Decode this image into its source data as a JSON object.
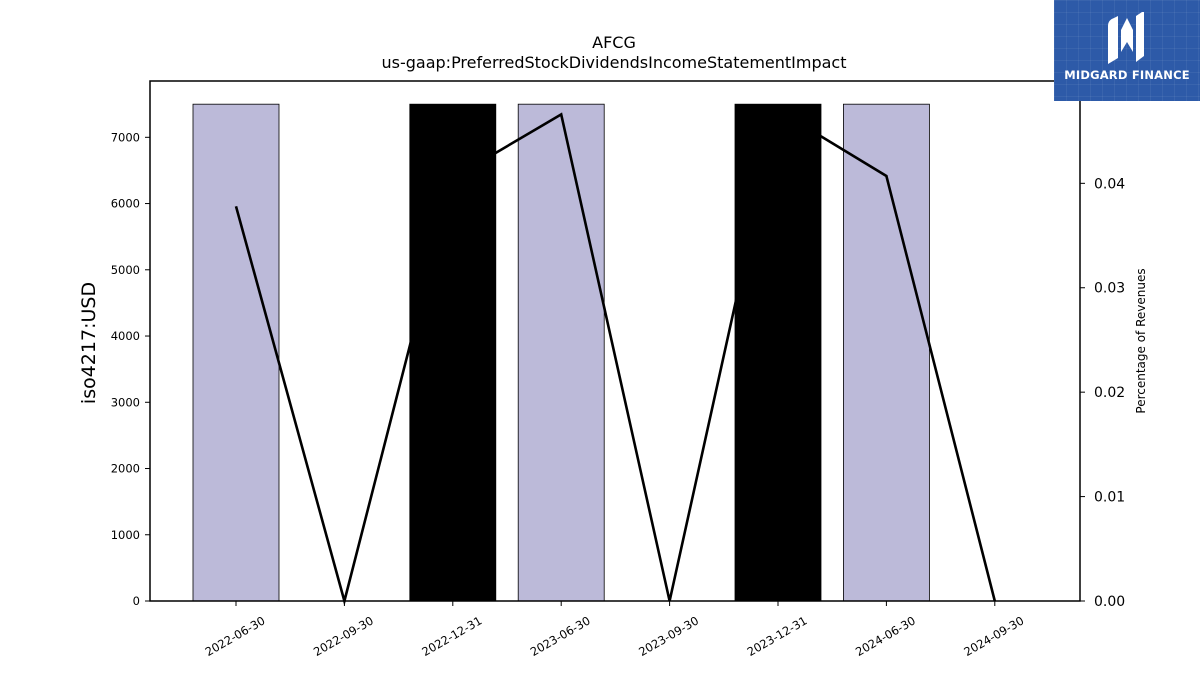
{
  "logo": {
    "text": "MIDGARD FINANCE",
    "icon": "midgard-finance-logo-mark",
    "bg_color": "#2d5aa8"
  },
  "chart_data": {
    "type": "bar",
    "title": "AFCG",
    "subtitle": "us-gaap:PreferredStockDividendsIncomeStatementImpact",
    "ylabel": "iso4217:USD",
    "y2label": "Percentage of Revenues",
    "categories": [
      "2022-06-30",
      "2022-09-30",
      "2022-12-31",
      "2023-06-30",
      "2023-09-30",
      "2023-12-31",
      "2024-06-30",
      "2024-09-30"
    ],
    "ylim": [
      0,
      7850
    ],
    "yticks": [
      0,
      1000,
      2000,
      3000,
      4000,
      5000,
      6000,
      7000
    ],
    "y2lim": [
      0,
      0.0498
    ],
    "y2ticks": [
      0.0,
      0.01,
      0.02,
      0.03,
      0.04
    ],
    "y2tick_labels": [
      "0.00",
      "0.01",
      "0.02",
      "0.03",
      "0.04"
    ],
    "grid": false,
    "series": [
      {
        "kind": "bar",
        "axis": "left",
        "values": [
          7500,
          null,
          7500,
          7500,
          null,
          7500,
          7500,
          null
        ],
        "colors": [
          "#bcbad9",
          null,
          "#000000",
          "#bcbad9",
          null,
          "#000000",
          "#bcbad9",
          null
        ]
      },
      {
        "kind": "line",
        "axis": "right",
        "color": "#000000",
        "values": [
          0.0378,
          0.0,
          0.0405,
          0.0466,
          0.0,
          0.047,
          0.0407,
          0.0
        ]
      }
    ]
  }
}
